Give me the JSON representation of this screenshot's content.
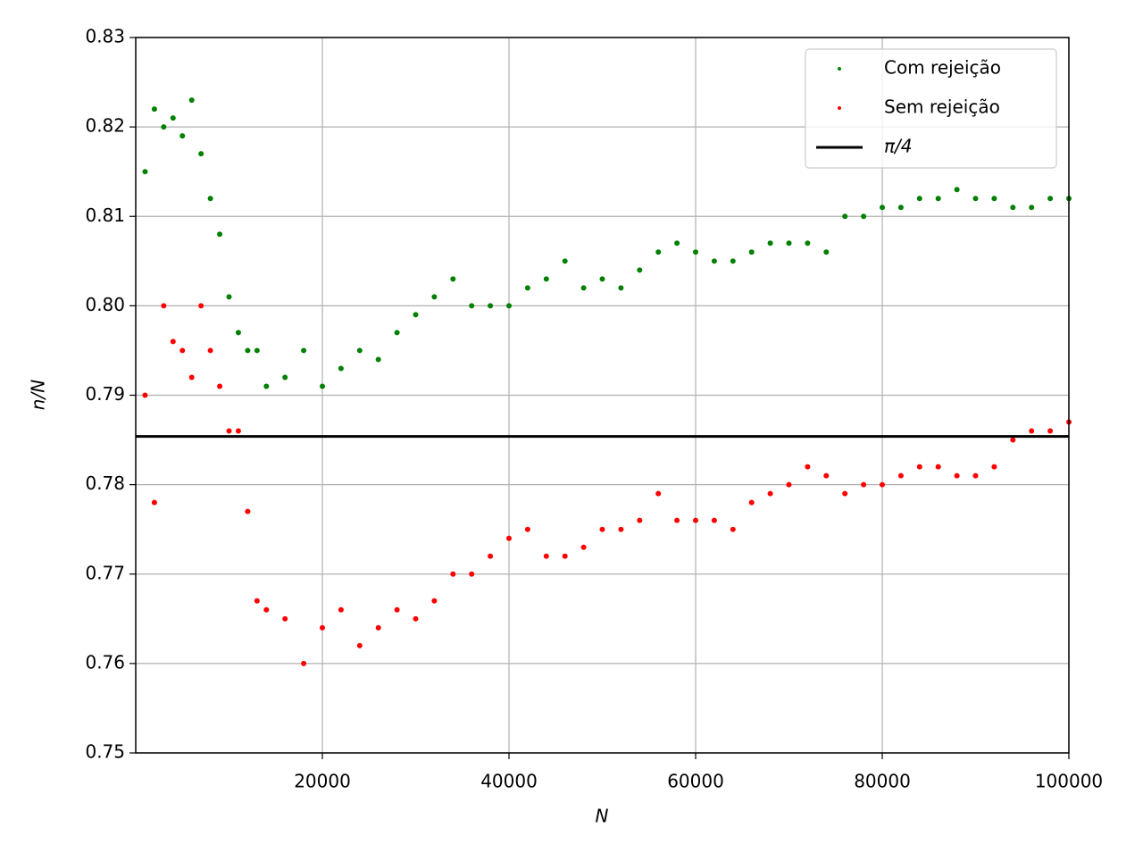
{
  "chart_data": {
    "type": "scatter",
    "xlabel": "N",
    "ylabel": "n/N",
    "x": [
      1000,
      2000,
      3000,
      4000,
      5000,
      6000,
      7000,
      8000,
      9000,
      10000,
      11000,
      12000,
      13000,
      14000,
      16000,
      18000,
      20000,
      22000,
      24000,
      26000,
      28000,
      30000,
      32000,
      34000,
      36000,
      38000,
      40000,
      42000,
      44000,
      46000,
      48000,
      50000,
      52000,
      54000,
      56000,
      58000,
      60000,
      62000,
      64000,
      66000,
      68000,
      70000,
      72000,
      74000,
      76000,
      78000,
      80000,
      82000,
      84000,
      86000,
      88000,
      90000,
      92000,
      94000,
      96000,
      98000,
      100000
    ],
    "series": [
      {
        "name": "Com rejeição",
        "color": "#008000",
        "values": [
          0.815,
          0.822,
          0.82,
          0.821,
          0.819,
          0.823,
          0.817,
          0.812,
          0.808,
          0.801,
          0.797,
          0.795,
          0.795,
          0.791,
          0.792,
          0.795,
          0.791,
          0.793,
          0.795,
          0.794,
          0.797,
          0.799,
          0.801,
          0.803,
          0.8,
          0.8,
          0.8,
          0.802,
          0.803,
          0.805,
          0.802,
          0.803,
          0.802,
          0.804,
          0.806,
          0.807,
          0.806,
          0.805,
          0.805,
          0.806,
          0.807,
          0.807,
          0.807,
          0.806,
          0.81,
          0.81,
          0.811,
          0.811,
          0.812,
          0.812,
          0.813,
          0.812,
          0.812,
          0.811,
          0.811,
          0.812,
          0.812
        ]
      },
      {
        "name": "Sem rejeição",
        "color": "#ff0000",
        "values": [
          0.79,
          0.778,
          0.8,
          0.796,
          0.795,
          0.792,
          0.8,
          0.795,
          0.791,
          0.786,
          0.786,
          0.777,
          0.767,
          0.766,
          0.765,
          0.76,
          0.764,
          0.766,
          0.762,
          0.764,
          0.766,
          0.765,
          0.767,
          0.77,
          0.77,
          0.772,
          0.774,
          0.775,
          0.772,
          0.772,
          0.773,
          0.775,
          0.775,
          0.776,
          0.779,
          0.776,
          0.776,
          0.776,
          0.775,
          0.778,
          0.779,
          0.78,
          0.782,
          0.781,
          0.779,
          0.78,
          0.78,
          0.781,
          0.782,
          0.782,
          0.781,
          0.781,
          0.782,
          0.785,
          0.786,
          0.786,
          0.787
        ]
      }
    ],
    "hlines": [
      {
        "name": "π/4",
        "value": 0.7853981634,
        "color": "#000000"
      }
    ],
    "xlim": [
      0,
      100000
    ],
    "xticks": [
      20000,
      40000,
      60000,
      80000,
      100000
    ],
    "ylim": [
      0.75,
      0.83
    ],
    "yticks": [
      0.75,
      0.76,
      0.77,
      0.78,
      0.79,
      {
        "value": 0.8,
        "label": "0.80"
      },
      0.81,
      0.82,
      0.83
    ],
    "grid": true,
    "legend": "upper right"
  }
}
